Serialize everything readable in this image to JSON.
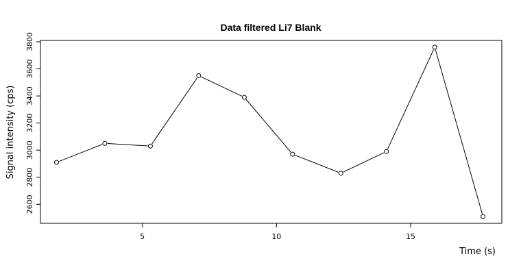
{
  "chart_data": {
    "type": "line",
    "title": "Data filtered Li7 Blank",
    "xlabel": "Time (s)",
    "ylabel": "Signal intensity (cps)",
    "x": [
      1.8,
      3.6,
      5.3,
      7.1,
      8.8,
      10.6,
      12.4,
      14.1,
      15.9,
      17.7
    ],
    "y": [
      2910,
      3050,
      3030,
      3550,
      3390,
      2970,
      2830,
      2990,
      3760,
      2510
    ],
    "xlim": [
      1.2,
      18.4
    ],
    "ylim": [
      2460,
      3810
    ],
    "xticks": [
      5,
      10,
      15
    ],
    "yticks": [
      2600,
      2800,
      3000,
      3200,
      3400,
      3600,
      3800
    ],
    "grid": false,
    "marker": "open-circle",
    "line_color": "#000000"
  }
}
